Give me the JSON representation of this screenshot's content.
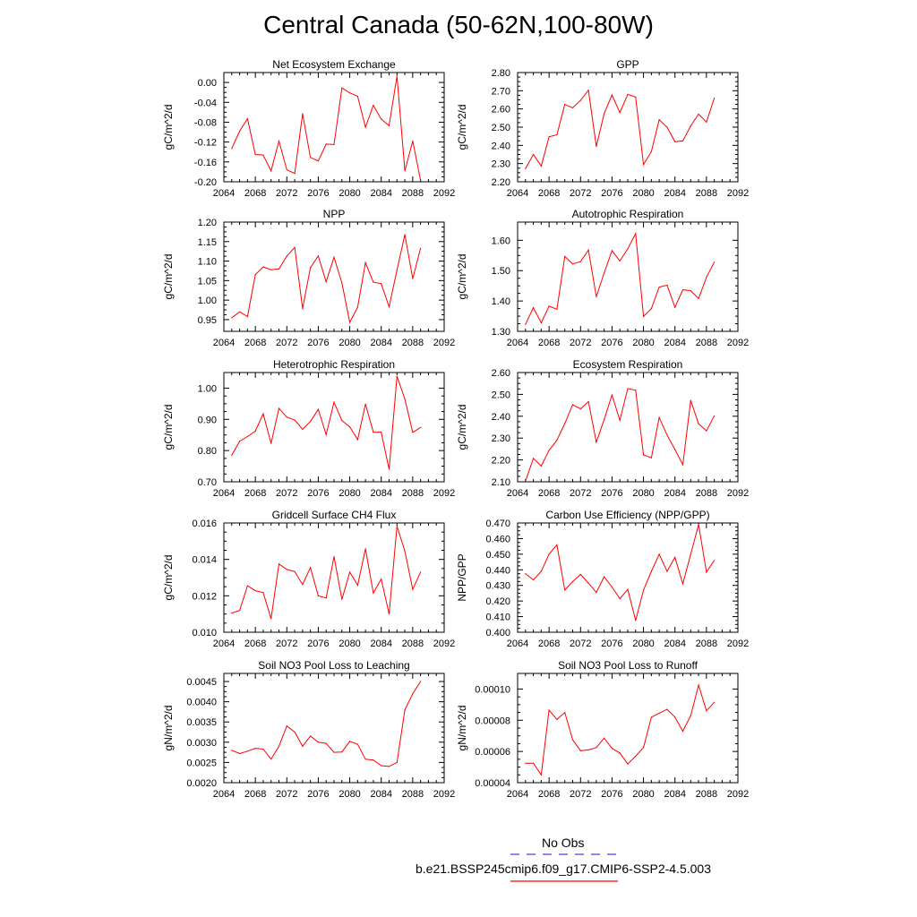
{
  "page_title": "Central Canada (50-62N,100-80W)",
  "legend": {
    "obs_label": "No Obs",
    "model_label": "b.e21.BSSP245cmip6.f09_g17.CMIP6-SSP2-4.5.003",
    "obs_color": "#4040ff",
    "model_color": "#ff0000"
  },
  "chart_data": [
    {
      "type": "line",
      "title": "Net Ecosystem Exchange",
      "ylabel": "gC/m^2/d",
      "xlim": [
        2064,
        2092
      ],
      "ylim": [
        -0.2,
        0.02
      ],
      "xticks": [
        "2064",
        "2068",
        "2072",
        "2076",
        "2080",
        "2084",
        "2088",
        "2092"
      ],
      "yticks": [
        "0.00",
        "-0.04",
        "-0.08",
        "-0.12",
        "-0.16",
        "-0.20"
      ],
      "x": [
        2065,
        2066,
        2067,
        2068,
        2069,
        2070,
        2071,
        2072,
        2073,
        2074,
        2075,
        2076,
        2077,
        2078,
        2079,
        2080,
        2081,
        2082,
        2083,
        2084,
        2085,
        2086,
        2087,
        2088,
        2089
      ],
      "series": [
        {
          "values": [
            -0.133,
            -0.098,
            -0.073,
            -0.145,
            -0.146,
            -0.178,
            -0.118,
            -0.176,
            -0.183,
            -0.063,
            -0.151,
            -0.158,
            -0.124,
            -0.125,
            -0.011,
            -0.021,
            -0.028,
            -0.09,
            -0.046,
            -0.074,
            -0.087,
            0.013,
            -0.178,
            -0.118,
            -0.197
          ]
        }
      ]
    },
    {
      "type": "line",
      "title": "GPP",
      "ylabel": "gC/m^2/d",
      "xlim": [
        2064,
        2092
      ],
      "ylim": [
        2.2,
        2.8
      ],
      "xticks": [
        "2064",
        "2068",
        "2072",
        "2076",
        "2080",
        "2084",
        "2088",
        "2092"
      ],
      "yticks": [
        "2.80",
        "2.70",
        "2.60",
        "2.50",
        "2.40",
        "2.30",
        "2.20"
      ],
      "x": [
        2065,
        2066,
        2067,
        2068,
        2069,
        2070,
        2071,
        2072,
        2073,
        2074,
        2075,
        2076,
        2077,
        2078,
        2079,
        2080,
        2081,
        2082,
        2083,
        2084,
        2085,
        2086,
        2087,
        2088,
        2089
      ],
      "series": [
        {
          "values": [
            2.272,
            2.35,
            2.286,
            2.447,
            2.458,
            2.625,
            2.606,
            2.647,
            2.703,
            2.394,
            2.574,
            2.677,
            2.58,
            2.68,
            2.665,
            2.295,
            2.366,
            2.541,
            2.5,
            2.42,
            2.425,
            2.507,
            2.572,
            2.528,
            2.66
          ]
        }
      ]
    },
    {
      "type": "line",
      "title": "NPP",
      "ylabel": "gC/m^2/d",
      "xlim": [
        2064,
        2092
      ],
      "ylim": [
        0.92,
        1.2
      ],
      "xticks": [
        "2064",
        "2068",
        "2072",
        "2076",
        "2080",
        "2084",
        "2088",
        "2092"
      ],
      "yticks": [
        "1.20",
        "1.15",
        "1.10",
        "1.05",
        "1.00",
        "0.95"
      ],
      "x": [
        2065,
        2066,
        2067,
        2068,
        2069,
        2070,
        2071,
        2072,
        2073,
        2074,
        2075,
        2076,
        2077,
        2078,
        2079,
        2080,
        2081,
        2082,
        2083,
        2084,
        2085,
        2086,
        2087,
        2088,
        2089
      ],
      "series": [
        {
          "values": [
            0.955,
            0.97,
            0.958,
            1.065,
            1.085,
            1.078,
            1.08,
            1.113,
            1.135,
            0.978,
            1.083,
            1.113,
            1.047,
            1.11,
            1.044,
            0.943,
            0.982,
            1.096,
            1.046,
            1.042,
            0.983,
            1.077,
            1.168,
            1.055,
            1.133
          ]
        }
      ]
    },
    {
      "type": "line",
      "title": "Autotrophic Respiration",
      "ylabel": "gC/m^2/d",
      "xlim": [
        2064,
        2092
      ],
      "ylim": [
        1.3,
        1.66
      ],
      "xticks": [
        "2064",
        "2068",
        "2072",
        "2076",
        "2080",
        "2084",
        "2088",
        "2092"
      ],
      "yticks": [
        "1.60",
        "1.50",
        "1.40",
        "1.30"
      ],
      "x": [
        2065,
        2066,
        2067,
        2068,
        2069,
        2070,
        2071,
        2072,
        2073,
        2074,
        2075,
        2076,
        2077,
        2078,
        2079,
        2080,
        2081,
        2082,
        2083,
        2084,
        2085,
        2086,
        2087,
        2088,
        2089
      ],
      "series": [
        {
          "values": [
            1.323,
            1.378,
            1.328,
            1.383,
            1.373,
            1.547,
            1.522,
            1.53,
            1.568,
            1.414,
            1.492,
            1.566,
            1.532,
            1.572,
            1.622,
            1.349,
            1.375,
            1.446,
            1.452,
            1.379,
            1.437,
            1.434,
            1.408,
            1.478,
            1.528
          ]
        }
      ]
    },
    {
      "type": "line",
      "title": "Heterotrophic Respiration",
      "ylabel": "gC/m^2/d",
      "xlim": [
        2064,
        2092
      ],
      "ylim": [
        0.7,
        1.05
      ],
      "xticks": [
        "2064",
        "2068",
        "2072",
        "2076",
        "2080",
        "2084",
        "2088",
        "2092"
      ],
      "yticks": [
        "1.00",
        "0.90",
        "0.80",
        "0.70"
      ],
      "x": [
        2065,
        2066,
        2067,
        2068,
        2069,
        2070,
        2071,
        2072,
        2073,
        2074,
        2075,
        2076,
        2077,
        2078,
        2079,
        2080,
        2081,
        2082,
        2083,
        2084,
        2085,
        2086,
        2087,
        2088,
        2089
      ],
      "series": [
        {
          "values": [
            0.785,
            0.83,
            0.845,
            0.862,
            0.918,
            0.823,
            0.935,
            0.907,
            0.898,
            0.868,
            0.893,
            0.932,
            0.851,
            0.955,
            0.896,
            0.876,
            0.835,
            0.949,
            0.859,
            0.859,
            0.74,
            1.038,
            0.965,
            0.858,
            0.874
          ]
        }
      ]
    },
    {
      "type": "line",
      "title": "Ecosystem Respiration",
      "ylabel": "gC/m^2/d",
      "xlim": [
        2064,
        2092
      ],
      "ylim": [
        2.1,
        2.6
      ],
      "xticks": [
        "2064",
        "2068",
        "2072",
        "2076",
        "2080",
        "2084",
        "2088",
        "2092"
      ],
      "yticks": [
        "2.60",
        "2.50",
        "2.40",
        "2.30",
        "2.20",
        "2.10"
      ],
      "x": [
        2065,
        2066,
        2067,
        2068,
        2069,
        2070,
        2071,
        2072,
        2073,
        2074,
        2075,
        2076,
        2077,
        2078,
        2079,
        2080,
        2081,
        2082,
        2083,
        2084,
        2085,
        2086,
        2087,
        2088,
        2089
      ],
      "series": [
        {
          "values": [
            2.103,
            2.207,
            2.172,
            2.244,
            2.29,
            2.367,
            2.453,
            2.434,
            2.467,
            2.281,
            2.384,
            2.497,
            2.381,
            2.527,
            2.519,
            2.223,
            2.21,
            2.394,
            2.314,
            2.248,
            2.178,
            2.472,
            2.365,
            2.333,
            2.402
          ]
        }
      ]
    },
    {
      "type": "line",
      "title": "Gridcell Surface CH4 Flux",
      "ylabel": "gC/m^2/d",
      "xlim": [
        2064,
        2092
      ],
      "ylim": [
        0.01,
        0.016
      ],
      "xticks": [
        "2064",
        "2068",
        "2072",
        "2076",
        "2080",
        "2084",
        "2088",
        "2092"
      ],
      "yticks": [
        "0.016",
        "0.014",
        "0.012",
        "0.010"
      ],
      "x": [
        2065,
        2066,
        2067,
        2068,
        2069,
        2070,
        2071,
        2072,
        2073,
        2074,
        2075,
        2076,
        2077,
        2078,
        2079,
        2080,
        2081,
        2082,
        2083,
        2084,
        2085,
        2086,
        2087,
        2088,
        2089
      ],
      "series": [
        {
          "values": [
            0.01105,
            0.0112,
            0.01255,
            0.01228,
            0.01218,
            0.01075,
            0.01375,
            0.01345,
            0.01333,
            0.01262,
            0.01355,
            0.012,
            0.01188,
            0.01415,
            0.0118,
            0.0133,
            0.01258,
            0.01458,
            0.01215,
            0.01292,
            0.011,
            0.01583,
            0.01445,
            0.01235,
            0.0133
          ]
        }
      ]
    },
    {
      "type": "line",
      "title": "Carbon Use Efficiency (NPP/GPP)",
      "ylabel": "NPP/GPP",
      "xlim": [
        2064,
        2092
      ],
      "ylim": [
        0.4,
        0.47
      ],
      "xticks": [
        "2064",
        "2068",
        "2072",
        "2076",
        "2080",
        "2084",
        "2088",
        "2092"
      ],
      "yticks": [
        "0.470",
        "0.460",
        "0.450",
        "0.440",
        "0.430",
        "0.420",
        "0.410",
        "0.400"
      ],
      "x": [
        2065,
        2066,
        2067,
        2068,
        2069,
        2070,
        2071,
        2072,
        2073,
        2074,
        2075,
        2076,
        2077,
        2078,
        2079,
        2080,
        2081,
        2082,
        2083,
        2084,
        2085,
        2086,
        2087,
        2088,
        2089
      ],
      "series": [
        {
          "values": [
            0.4375,
            0.4335,
            0.439,
            0.45,
            0.456,
            0.427,
            0.4325,
            0.437,
            0.4315,
            0.4255,
            0.4355,
            0.429,
            0.4215,
            0.4275,
            0.4075,
            0.427,
            0.439,
            0.45,
            0.439,
            0.448,
            0.431,
            0.45,
            0.469,
            0.4385,
            0.446
          ]
        }
      ]
    },
    {
      "type": "line",
      "title": "Soil NO3 Pool Loss to Leaching",
      "ylabel": "gN/m^2/d",
      "xlim": [
        2064,
        2092
      ],
      "ylim": [
        0.002,
        0.0047
      ],
      "xticks": [
        "2064",
        "2068",
        "2072",
        "2076",
        "2080",
        "2084",
        "2088",
        "2092"
      ],
      "yticks": [
        "0.0045",
        "0.0040",
        "0.0035",
        "0.0030",
        "0.0025",
        "0.0020"
      ],
      "x": [
        2065,
        2066,
        2067,
        2068,
        2069,
        2070,
        2071,
        2072,
        2073,
        2074,
        2075,
        2076,
        2077,
        2078,
        2079,
        2080,
        2081,
        2082,
        2083,
        2084,
        2085,
        2086,
        2087,
        2088,
        2089
      ],
      "series": [
        {
          "values": [
            0.0028,
            0.00272,
            0.00278,
            0.00285,
            0.00283,
            0.00258,
            0.0029,
            0.0034,
            0.00325,
            0.0029,
            0.00315,
            0.003,
            0.00297,
            0.00275,
            0.00276,
            0.00302,
            0.00295,
            0.00258,
            0.00256,
            0.00242,
            0.0024,
            0.0025,
            0.0038,
            0.0042,
            0.0045
          ]
        }
      ]
    },
    {
      "type": "line",
      "title": "Soil NO3 Pool Loss to Runoff",
      "ylabel": "gN/m^2/d",
      "xlim": [
        2064,
        2092
      ],
      "ylim": [
        4e-05,
        0.00011
      ],
      "xticks": [
        "2064",
        "2068",
        "2072",
        "2076",
        "2080",
        "2084",
        "2088",
        "2092"
      ],
      "yticks": [
        "0.00010",
        "0.00008",
        "0.00006",
        "0.00004"
      ],
      "x": [
        2065,
        2066,
        2067,
        2068,
        2069,
        2070,
        2071,
        2072,
        2073,
        2074,
        2075,
        2076,
        2077,
        2078,
        2079,
        2080,
        2081,
        2082,
        2083,
        2084,
        2085,
        2086,
        2087,
        2088,
        2089
      ],
      "series": [
        {
          "values": [
            5.25e-05,
            5.25e-05,
            4.5e-05,
            8.65e-05,
            8.05e-05,
            8.5e-05,
            6.75e-05,
            6.05e-05,
            6.1e-05,
            6.25e-05,
            6.85e-05,
            6.2e-05,
            5.9e-05,
            5.2e-05,
            5.7e-05,
            6.25e-05,
            8.2e-05,
            8.45e-05,
            8.7e-05,
            8.2e-05,
            7.3e-05,
            8.3e-05,
            0.0001025,
            8.6e-05,
            9.15e-05
          ]
        }
      ]
    }
  ]
}
